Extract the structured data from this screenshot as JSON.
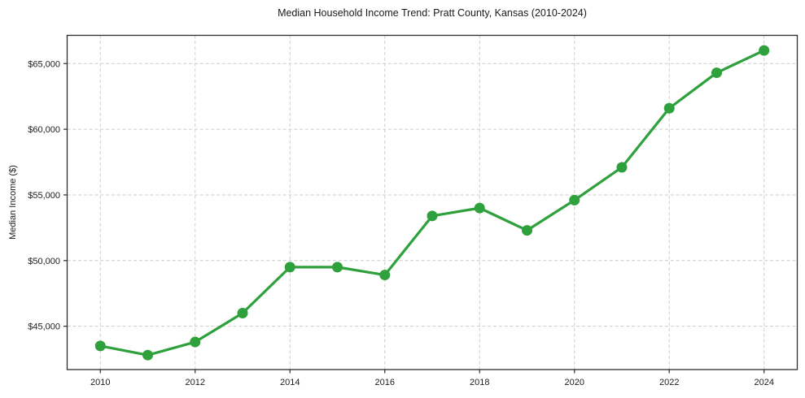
{
  "chart_data": {
    "type": "line",
    "title": "Median Household Income Trend: Pratt County, Kansas (2010-2024)",
    "xlabel": "",
    "ylabel": "Median Income ($)",
    "x": [
      2010,
      2011,
      2012,
      2013,
      2014,
      2015,
      2016,
      2017,
      2018,
      2019,
      2020,
      2021,
      2022,
      2023,
      2024
    ],
    "values": [
      43500,
      42800,
      43800,
      46000,
      49500,
      49500,
      48900,
      53400,
      54000,
      52300,
      54600,
      57100,
      61600,
      64300,
      66000
    ],
    "series_name": "Median Household Income",
    "xticks": [
      2010,
      2012,
      2014,
      2016,
      2018,
      2020,
      2022,
      2024
    ],
    "xtick_labels": [
      "2010",
      "2012",
      "2014",
      "2016",
      "2018",
      "2020",
      "2022",
      "2024"
    ],
    "yticks": [
      45000,
      50000,
      55000,
      60000,
      65000
    ],
    "ytick_labels": [
      "$45,000",
      "$50,000",
      "$55,000",
      "$60,000",
      "$65,000"
    ],
    "xlim": [
      2009.3,
      2024.7
    ],
    "ylim": [
      41700,
      67150
    ],
    "grid": true,
    "grid_style": "dashed",
    "legend": false,
    "line_color": "#2ea03c",
    "marker": "circle",
    "marker_radius": 6.5,
    "line_width": 3.2,
    "grid_color": "#cccccc",
    "spine_color": "#2e2e2e",
    "tick_color": "#2e2e2e",
    "text_color": "#1c1c1c",
    "background_color": "#ffffff"
  }
}
